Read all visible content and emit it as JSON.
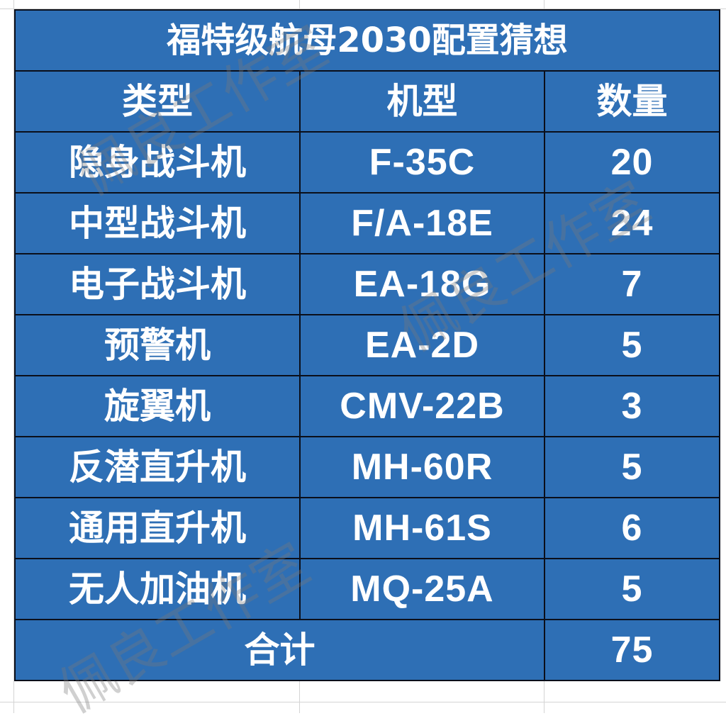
{
  "title": "福特级航母2030配置猜想",
  "headers": [
    "类型",
    "机型",
    "数量"
  ],
  "rows": [
    {
      "type": "隐身战斗机",
      "model": "F-35C",
      "count": "20"
    },
    {
      "type": "中型战斗机",
      "model": "F/A-18E",
      "count": "24"
    },
    {
      "type": "电子战斗机",
      "model": "EA-18G",
      "count": "7"
    },
    {
      "type": "预警机",
      "model": "EA-2D",
      "count": "5"
    },
    {
      "type": "旋翼机",
      "model": "CMV-22B",
      "count": "3"
    },
    {
      "type": "反潜直升机",
      "model": "MH-60R",
      "count": "5"
    },
    {
      "type": "通用直升机",
      "model": "MH-61S",
      "count": "6"
    },
    {
      "type": "无人加油机",
      "model": "MQ-25A",
      "count": "5"
    }
  ],
  "total": {
    "label": "合计",
    "count": "75"
  },
  "watermark": "佩良工作室",
  "colors": {
    "cell_bg": "#2e6fb5",
    "border": "#0b0f1a",
    "text": "#ffffff"
  }
}
